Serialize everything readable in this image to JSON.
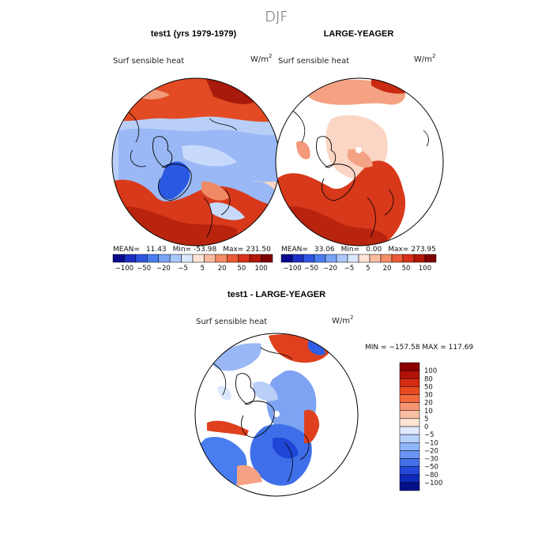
{
  "figure": {
    "title": "DJF",
    "panel1": {
      "heading": "test1 (yrs 1979-1979)",
      "variable": "Surf sensible heat",
      "units": "W/m",
      "units_exp": "2",
      "mean_label": "MEAN=",
      "mean": "11.43",
      "min_label": "Min=",
      "min": "-53.98",
      "max_label": "Max=",
      "max": "231.50"
    },
    "panel2": {
      "heading": "LARGE-YEAGER",
      "variable": "Surf sensible heat",
      "units": "W/m",
      "units_exp": "2",
      "mean_label": "MEAN=",
      "mean": "33.06",
      "min_label": "Min=",
      "min": "0.00",
      "max_label": "Max=",
      "max": "273.95"
    },
    "panel3": {
      "heading": "test1 - LARGE-YEAGER",
      "variable": "Surf sensible heat",
      "units": "W/m",
      "units_exp": "2",
      "minmax": "MIN = −157.58  MAX = 117.69"
    },
    "colorbar_h": {
      "colors": [
        "#08088e",
        "#1a2fc4",
        "#2f55e0",
        "#4a7ef0",
        "#7aa4f5",
        "#aac8fa",
        "#dbe7fc",
        "#fde4d6",
        "#f9bba0",
        "#f48c66",
        "#ea5a34",
        "#d8301a",
        "#b31808",
        "#7f0000"
      ],
      "labels": [
        "−100",
        "−50",
        "−20",
        "−5",
        "5",
        "20",
        "50",
        "100"
      ]
    },
    "colorbar_v": {
      "colors": [
        "#8b0000",
        "#b01208",
        "#d42b12",
        "#ea4a22",
        "#f06a3e",
        "#f49470",
        "#f8bea4",
        "#fde4d4",
        "#dfeafd",
        "#b8d2fb",
        "#8fb4f7",
        "#6a94f2",
        "#4371ea",
        "#2349dc",
        "#0e28b8",
        "#04108a"
      ],
      "labels": [
        "100",
        "80",
        "50",
        "30",
        "20",
        "10",
        "5",
        "0",
        "−5",
        "−10",
        "−20",
        "−30",
        "−50",
        "−80",
        "−100"
      ]
    },
    "palette": {
      "deep_red": "#b01a0a",
      "red": "#e0401e",
      "light_red": "#f4a283",
      "pale": "#fbd6c4",
      "light_blue": "#b9cff8",
      "blue": "#7ea3f2",
      "deep_blue": "#2f5fe4"
    }
  }
}
